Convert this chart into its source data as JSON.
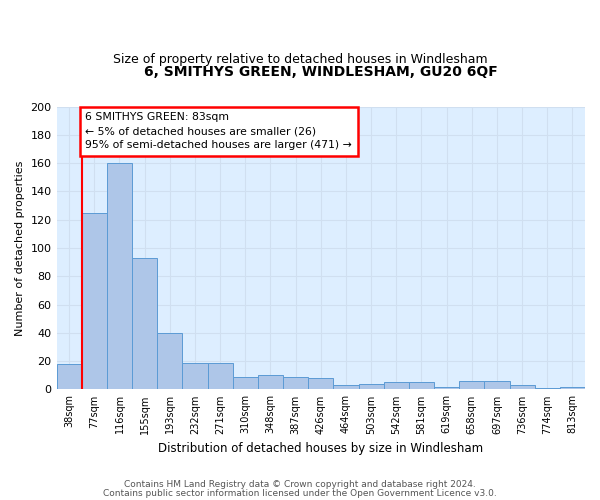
{
  "title": "6, SMITHYS GREEN, WINDLESHAM, GU20 6QF",
  "subtitle": "Size of property relative to detached houses in Windlesham",
  "xlabel": "Distribution of detached houses by size in Windlesham",
  "ylabel": "Number of detached properties",
  "bar_values": [
    18,
    125,
    160,
    93,
    40,
    19,
    19,
    9,
    10,
    9,
    8,
    3,
    4,
    5,
    5,
    2,
    6,
    6,
    3,
    1,
    2
  ],
  "bin_labels": [
    "38sqm",
    "77sqm",
    "116sqm",
    "155sqm",
    "193sqm",
    "232sqm",
    "271sqm",
    "310sqm",
    "348sqm",
    "387sqm",
    "426sqm",
    "464sqm",
    "503sqm",
    "542sqm",
    "581sqm",
    "619sqm",
    "658sqm",
    "697sqm",
    "736sqm",
    "774sqm",
    "813sqm"
  ],
  "bar_color": "#aec6e8",
  "bar_edge_color": "#5b9bd5",
  "red_line_x": 1,
  "annotation_text": "6 SMITHYS GREEN: 83sqm\n← 5% of detached houses are smaller (26)\n95% of semi-detached houses are larger (471) →",
  "annotation_box_color": "white",
  "annotation_box_edge_color": "red",
  "ylim": [
    0,
    200
  ],
  "yticks": [
    0,
    20,
    40,
    60,
    80,
    100,
    120,
    140,
    160,
    180,
    200
  ],
  "grid_color": "#d0dff0",
  "bg_color": "#ddeeff",
  "footer_line1": "Contains HM Land Registry data © Crown copyright and database right 2024.",
  "footer_line2": "Contains public sector information licensed under the Open Government Licence v3.0."
}
